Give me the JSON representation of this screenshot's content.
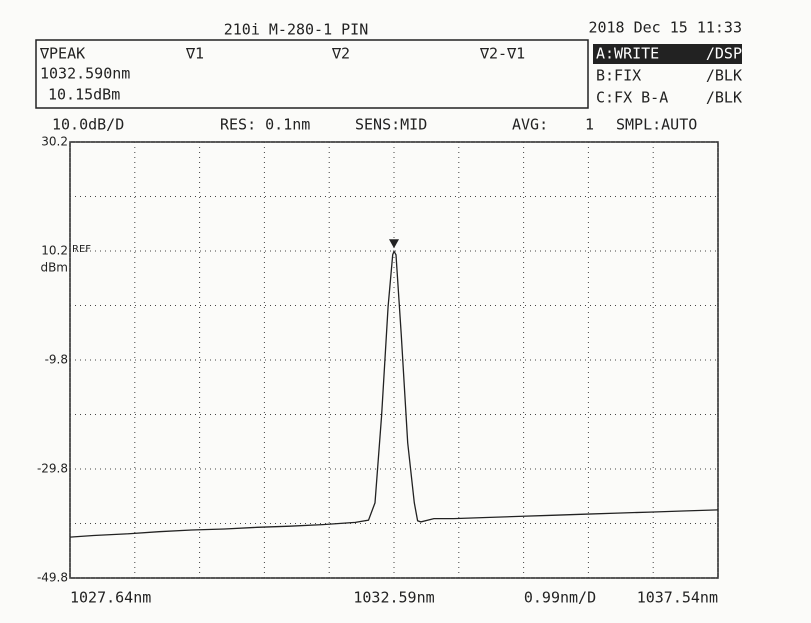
{
  "header": {
    "model": "210i M-280-1 PIN",
    "datetime": "2018 Dec 15 11:33",
    "marker_box": {
      "peak_label": "∇PEAK",
      "peak_wavelength": "1032.590nm",
      "peak_level": "10.15dBm",
      "marker1": "∇1",
      "marker2": "∇2",
      "marker_diff": "∇2-∇1"
    },
    "traces": [
      [
        "A:WRITE",
        "/DSP"
      ],
      [
        "B:FIX",
        "/BLK"
      ],
      [
        "C:FX B-A",
        "/BLK"
      ]
    ],
    "settings": [
      "10.0dB/D",
      "RES: 0.1nm",
      "SENS:MID",
      "AVG:",
      "1",
      "SMPL:AUTO"
    ]
  },
  "chart_data": {
    "type": "line",
    "y_unit": "dBm",
    "ref_label": "REF",
    "x_per_div": "0.99nm/D",
    "color": "#222222",
    "x": [
      1027.64,
      1028.0,
      1028.5,
      1029.0,
      1029.5,
      1030.0,
      1030.5,
      1031.0,
      1031.5,
      1032.0,
      1032.2,
      1032.3,
      1032.4,
      1032.5,
      1032.57,
      1032.59,
      1032.62,
      1032.7,
      1032.8,
      1032.9,
      1032.95,
      1033.0,
      1033.2,
      1033.5,
      1034.0,
      1034.5,
      1035.0,
      1035.5,
      1036.0,
      1036.5,
      1037.0,
      1037.54
    ],
    "values": [
      -42.3,
      -42.0,
      -41.7,
      -41.3,
      -41.0,
      -40.8,
      -40.5,
      -40.3,
      -40.0,
      -39.6,
      -39.2,
      -36,
      -20,
      0,
      9.5,
      10.15,
      9.5,
      -5,
      -25,
      -36,
      -39.3,
      -39.5,
      -38.9,
      -38.9,
      -38.7,
      -38.5,
      -38.3,
      -38.1,
      -37.9,
      -37.7,
      -37.5,
      -37.3
    ],
    "xlim": [
      1027.64,
      1037.54
    ],
    "xticks": [
      {
        "value": 1027.64,
        "label": "1027.64nm"
      },
      {
        "value": 1032.59,
        "label": "1032.59nm"
      },
      {
        "value": 1037.54,
        "label": "1037.54nm"
      }
    ],
    "ylim": [
      -49.8,
      30.2
    ],
    "yticks": [
      30.2,
      10.2,
      -9.8,
      -29.8,
      -49.8
    ],
    "grid": true,
    "peak_marker": 10.15
  }
}
